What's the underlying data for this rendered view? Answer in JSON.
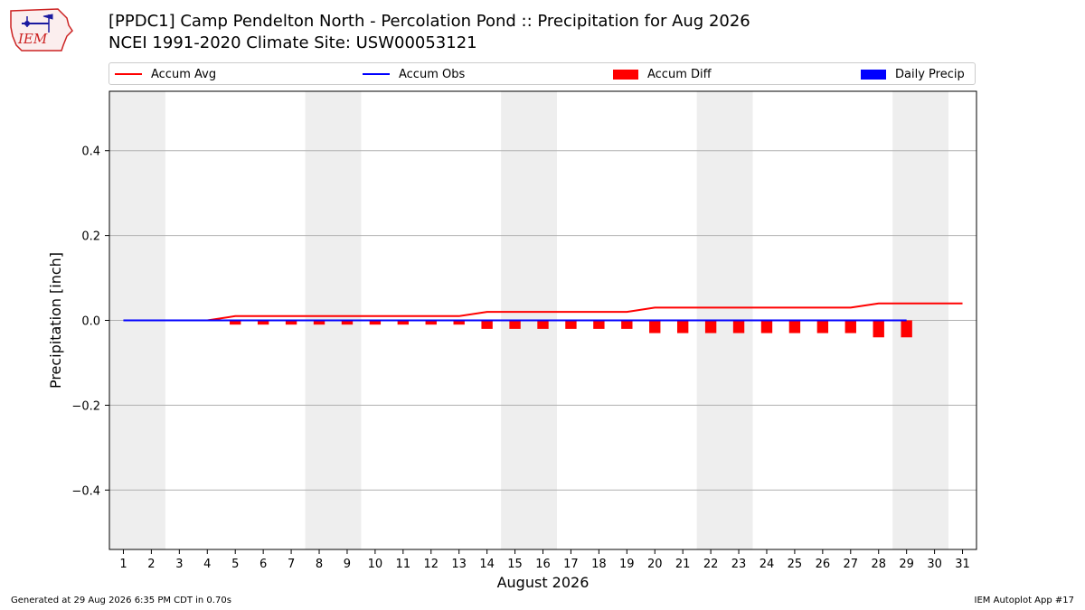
{
  "header": {
    "logo_text": "IEM",
    "title_line1": "[PPDC1] Camp Pendelton North - Percolation Pond :: Precipitation for Aug 2026",
    "title_line2": "NCEI 1991-2020 Climate Site: USW00053121"
  },
  "legend": {
    "items": [
      {
        "label": "Accum Avg",
        "kind": "line",
        "color": "#ff0000"
      },
      {
        "label": "Accum Obs",
        "kind": "line",
        "color": "#0000ff"
      },
      {
        "label": "Accum Diff",
        "kind": "box",
        "color": "#ff0000"
      },
      {
        "label": "Daily Precip",
        "kind": "box",
        "color": "#0000ff"
      }
    ]
  },
  "chart_data": {
    "type": "line",
    "title": "[PPDC1] Camp Pendelton North - Percolation Pond :: Precipitation for Aug 2026",
    "subtitle": "NCEI 1991-2020 Climate Site: USW00053121",
    "xlabel": "August 2026",
    "ylabel": "Precipitation [inch]",
    "xlim": [
      0.5,
      31.5
    ],
    "ylim": [
      -0.54,
      0.54
    ],
    "x_ticks": [
      1,
      2,
      3,
      4,
      5,
      6,
      7,
      8,
      9,
      10,
      11,
      12,
      13,
      14,
      15,
      16,
      17,
      18,
      19,
      20,
      21,
      22,
      23,
      24,
      25,
      26,
      27,
      28,
      29,
      30,
      31
    ],
    "y_ticks": [
      0.4,
      0.2,
      0.0,
      -0.2,
      -0.4
    ],
    "y_tick_labels": [
      "0.4",
      "0.2",
      "0.0",
      "−0.2",
      "−0.4"
    ],
    "grid": "horizontal",
    "weekend_shading": [
      [
        1,
        2
      ],
      [
        8,
        9
      ],
      [
        15,
        16
      ],
      [
        22,
        23
      ],
      [
        29,
        30
      ]
    ],
    "series": [
      {
        "name": "Accum Avg",
        "type": "line",
        "color": "#ff0000",
        "x": [
          1,
          2,
          3,
          4,
          5,
          6,
          7,
          8,
          9,
          10,
          11,
          12,
          13,
          14,
          15,
          16,
          17,
          18,
          19,
          20,
          21,
          22,
          23,
          24,
          25,
          26,
          27,
          28,
          29,
          30,
          31
        ],
        "values": [
          0.0,
          0.0,
          0.0,
          0.0,
          0.01,
          0.01,
          0.01,
          0.01,
          0.01,
          0.01,
          0.01,
          0.01,
          0.01,
          0.02,
          0.02,
          0.02,
          0.02,
          0.02,
          0.02,
          0.03,
          0.03,
          0.03,
          0.03,
          0.03,
          0.03,
          0.03,
          0.03,
          0.04,
          0.04,
          0.04,
          0.04
        ]
      },
      {
        "name": "Accum Obs",
        "type": "line",
        "color": "#0000ff",
        "x": [
          1,
          2,
          3,
          4,
          5,
          6,
          7,
          8,
          9,
          10,
          11,
          12,
          13,
          14,
          15,
          16,
          17,
          18,
          19,
          20,
          21,
          22,
          23,
          24,
          25,
          26,
          27,
          28,
          29
        ],
        "values": [
          0,
          0,
          0,
          0,
          0,
          0,
          0,
          0,
          0,
          0,
          0,
          0,
          0,
          0,
          0,
          0,
          0,
          0,
          0,
          0,
          0,
          0,
          0,
          0,
          0,
          0,
          0,
          0,
          0
        ]
      },
      {
        "name": "Accum Diff",
        "type": "bar",
        "color": "#ff0000",
        "x": [
          1,
          2,
          3,
          4,
          5,
          6,
          7,
          8,
          9,
          10,
          11,
          12,
          13,
          14,
          15,
          16,
          17,
          18,
          19,
          20,
          21,
          22,
          23,
          24,
          25,
          26,
          27,
          28,
          29
        ],
        "values": [
          0.0,
          0.0,
          0.0,
          0.0,
          -0.01,
          -0.01,
          -0.01,
          -0.01,
          -0.01,
          -0.01,
          -0.01,
          -0.01,
          -0.01,
          -0.02,
          -0.02,
          -0.02,
          -0.02,
          -0.02,
          -0.02,
          -0.03,
          -0.03,
          -0.03,
          -0.03,
          -0.03,
          -0.03,
          -0.03,
          -0.03,
          -0.04,
          -0.04
        ]
      },
      {
        "name": "Daily Precip",
        "type": "bar",
        "color": "#0000ff",
        "x": [
          1,
          2,
          3,
          4,
          5,
          6,
          7,
          8,
          9,
          10,
          11,
          12,
          13,
          14,
          15,
          16,
          17,
          18,
          19,
          20,
          21,
          22,
          23,
          24,
          25,
          26,
          27,
          28,
          29
        ],
        "values": [
          0,
          0,
          0,
          0,
          0,
          0,
          0,
          0,
          0,
          0,
          0,
          0,
          0,
          0,
          0,
          0,
          0,
          0,
          0,
          0,
          0,
          0,
          0,
          0,
          0,
          0,
          0,
          0,
          0
        ]
      }
    ]
  },
  "footer": {
    "left": "Generated at 29 Aug 2026 6:35 PM CDT in 0.70s",
    "right": "IEM Autoplot App #17"
  }
}
